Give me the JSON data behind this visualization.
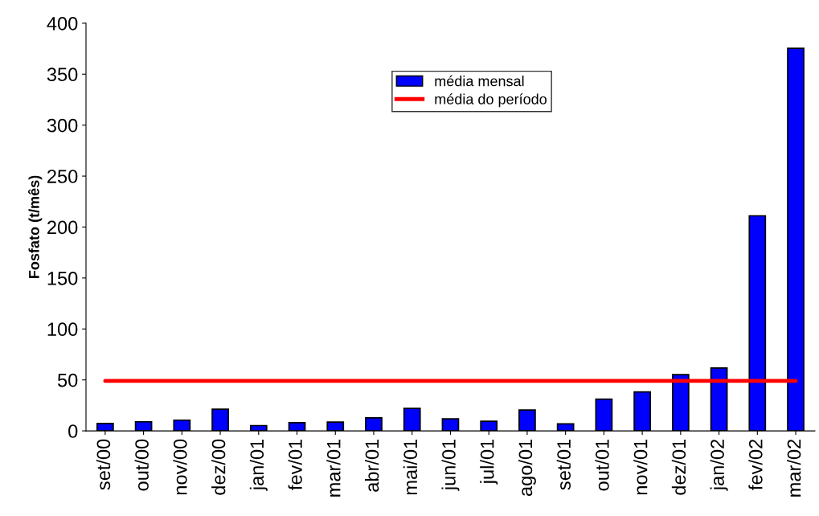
{
  "chart_data": {
    "type": "bar",
    "ylabel": "Fosfato (t/mês)",
    "categories": [
      "set/00",
      "out/00",
      "nov/00",
      "dez/00",
      "jan/01",
      "fev/01",
      "mar/01",
      "abr/01",
      "mai/01",
      "jun/01",
      "jul/01",
      "ago/01",
      "set/01",
      "out/01",
      "nov/01",
      "dez/01",
      "jan/02",
      "fev/02",
      "mar/02"
    ],
    "series": [
      {
        "name": "média mensal",
        "color": "#0000ff",
        "values": [
          7.3,
          8.9,
          10.5,
          21.2,
          5.2,
          8.1,
          8.6,
          12.8,
          22,
          11.8,
          9.4,
          20.4,
          6.8,
          31.1,
          38.2,
          55.2,
          61.7,
          211,
          375.4
        ]
      },
      {
        "name": "média do período",
        "type": "line",
        "color": "#ff0000",
        "values": [
          49,
          49,
          49,
          49,
          49,
          49,
          49,
          49,
          49,
          49,
          49,
          49,
          49,
          49,
          49,
          49,
          49,
          49,
          49
        ]
      }
    ],
    "ylim": [
      0,
      400
    ],
    "yticks": [
      0,
      50,
      100,
      150,
      200,
      250,
      300,
      350,
      400
    ],
    "grid": false,
    "legend": "top right",
    "marker": "none",
    "line_style": "solid"
  }
}
